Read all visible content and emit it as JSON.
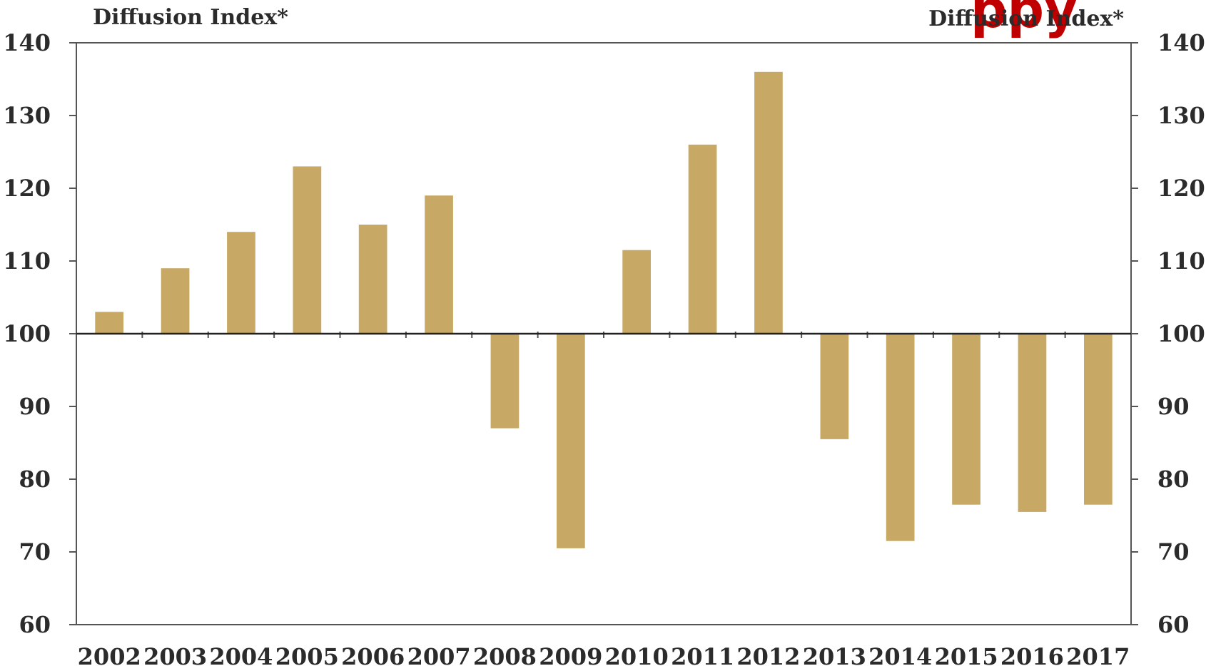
{
  "chart_data": {
    "type": "bar",
    "title": "",
    "ylabel_left": "Diffusion Index*",
    "ylabel_right": "Diffusion Index*",
    "xlabel": "",
    "ylim": [
      60,
      140
    ],
    "yticks": [
      60,
      70,
      80,
      90,
      100,
      110,
      120,
      130,
      140
    ],
    "baseline": 100,
    "grid": false,
    "legend": "none",
    "bar_color": "#c8a865",
    "categories": [
      "2002",
      "2003",
      "2004",
      "2005",
      "2006",
      "2007",
      "2008",
      "2009",
      "2010",
      "2011",
      "2012",
      "2013",
      "2014",
      "2015",
      "2016",
      "2017"
    ],
    "values": [
      103,
      109,
      114,
      123,
      115,
      119,
      87,
      70.5,
      111.5,
      126,
      136,
      85.5,
      71.5,
      76.5,
      75.5,
      76.5
    ]
  },
  "overlay_text": "ppy"
}
